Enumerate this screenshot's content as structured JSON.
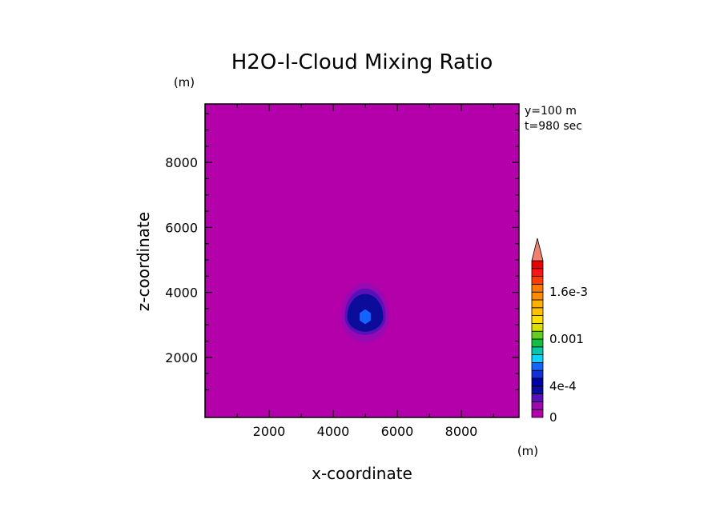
{
  "chart_data": {
    "type": "heatmap",
    "title": "H2O-I-Cloud Mixing Ratio",
    "xlabel": "x-coordinate",
    "ylabel": "z-coordinate",
    "x_unit": "(m)",
    "y_unit": "(m)",
    "xlim": [
      0,
      9800
    ],
    "ylim": [
      150,
      9800
    ],
    "x_ticks": [
      2000,
      4000,
      6000,
      8000
    ],
    "y_ticks": [
      2000,
      4000,
      6000,
      8000
    ],
    "x_tick_labels": [
      "2000",
      "4000",
      "6000",
      "8000"
    ],
    "y_tick_labels": [
      "2000",
      "4000",
      "6000",
      "8000"
    ],
    "annotations": [
      "y=100 m",
      "t=980 sec"
    ],
    "background_color": "#b400aa",
    "contours": [
      {
        "level": 0.0001,
        "color": "#9a08b2",
        "cx": 5000,
        "cz": 3250,
        "rx": 750,
        "rz_top": 1050,
        "rz_bottom": 800
      },
      {
        "level": 0.0002,
        "color": "#5a10b8",
        "cx": 5000,
        "cz": 3250,
        "rx": 640,
        "rz_top": 870,
        "rz_bottom": 560
      },
      {
        "level": 0.0003,
        "color": "#0c0c9a",
        "cx": 5000,
        "cz": 3250,
        "rx": 560,
        "rz_top": 700,
        "rz_bottom": 460
      },
      {
        "level": 0.0005,
        "color": "#1464ff",
        "cx": 5000,
        "cz": 3250,
        "rx": 200,
        "rz_top": 230,
        "rz_bottom": 230
      }
    ],
    "colorbar": {
      "bounds": [
        0,
        0.0001,
        0.0002,
        0.0003,
        0.0004,
        0.0005,
        0.0006,
        0.0007,
        0.0008,
        0.0009,
        0.001,
        0.0011,
        0.0012,
        0.0013,
        0.0014,
        0.0015,
        0.0016,
        0.0017,
        0.0018,
        0.0019,
        0.002
      ],
      "colors": [
        "#b400aa",
        "#9a08b2",
        "#5a10b8",
        "#0c0c9a",
        "#0000a8",
        "#1030d8",
        "#1464ff",
        "#10d0ff",
        "#00c8a8",
        "#10c040",
        "#60d020",
        "#d8e000",
        "#ffe000",
        "#ffc000",
        "#ffb000",
        "#ff8c00",
        "#ff7800",
        "#ff3c00",
        "#ff1414",
        "#e80000"
      ],
      "extend_color": "#f08070",
      "labels": [
        {
          "value": 0,
          "text": "0"
        },
        {
          "value": 0.0004,
          "text": "4e-4"
        },
        {
          "value": 0.001,
          "text": "0.001"
        },
        {
          "value": 0.0016,
          "text": "1.6e-3"
        }
      ]
    }
  }
}
